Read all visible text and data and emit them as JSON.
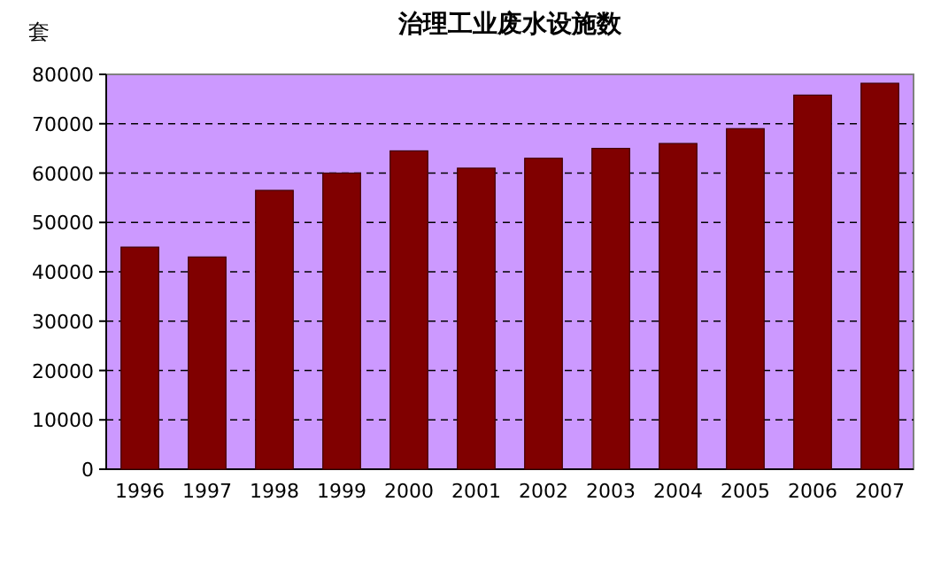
{
  "chart_data": {
    "type": "bar",
    "title": "治理工业废水设施数",
    "ylabel": "套",
    "categories": [
      "1996",
      "1997",
      "1998",
      "1999",
      "2000",
      "2001",
      "2002",
      "2003",
      "2004",
      "2005",
      "2006",
      "2007"
    ],
    "values": [
      45000,
      43000,
      56500,
      60000,
      64500,
      61000,
      63000,
      65000,
      66000,
      69000,
      75800,
      78200
    ],
    "color": "#800000",
    "ylim": [
      0,
      80000
    ],
    "yticks": [
      0,
      10000,
      20000,
      30000,
      40000,
      50000,
      60000,
      70000,
      80000
    ],
    "grid": "y"
  }
}
